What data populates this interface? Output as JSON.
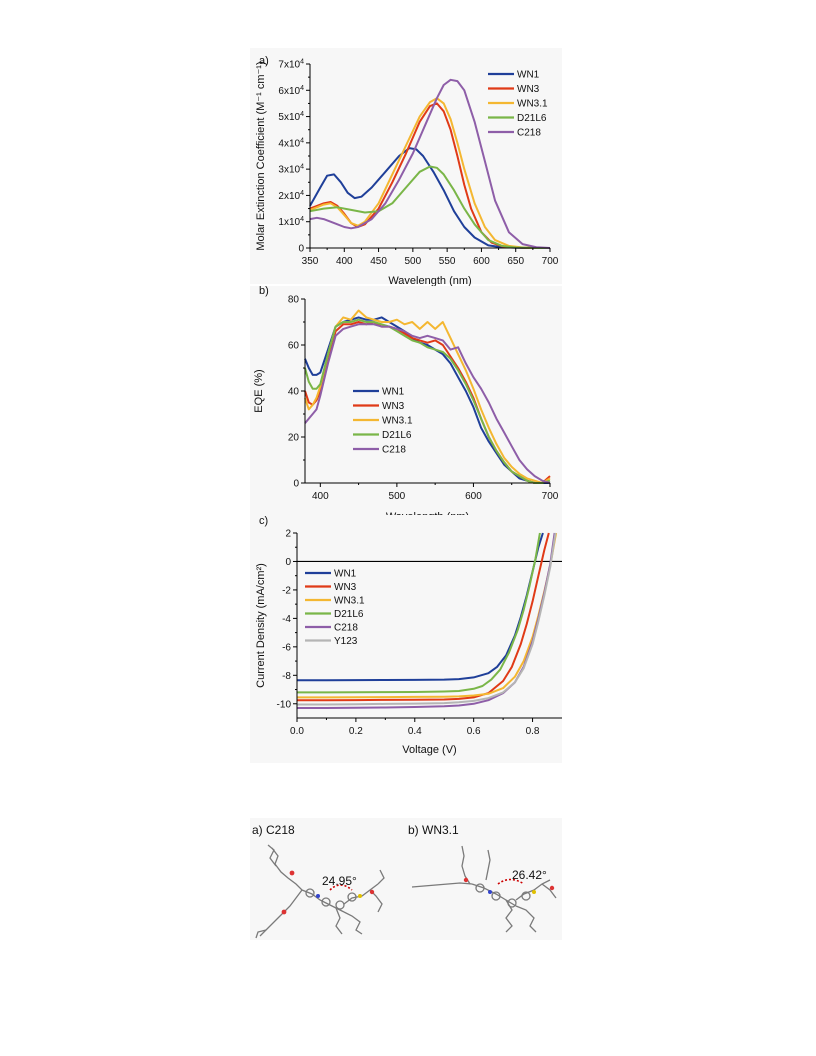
{
  "chart_data": [
    {
      "type": "line",
      "panel_label": "a)",
      "xlabel": "Wavelength (nm)",
      "ylabel": "Molar Extinction Coefficient (M⁻¹ cm⁻¹)",
      "xlim": [
        350,
        700
      ],
      "ylim": [
        0,
        70000
      ],
      "xticks": [
        350,
        400,
        450,
        500,
        550,
        600,
        650,
        700
      ],
      "yticks": [
        0,
        10000,
        20000,
        30000,
        40000,
        50000,
        60000,
        70000
      ],
      "ytick_labels": [
        "0",
        "1x10⁴",
        "2x10⁴",
        "3x10⁴",
        "4x10⁴",
        "5x10⁴",
        "6x10⁴",
        "7x10⁴"
      ],
      "legend": "top-right",
      "series": [
        {
          "name": "WN1",
          "color": "#1f3f99",
          "x": [
            350,
            365,
            375,
            385,
            395,
            405,
            415,
            425,
            440,
            460,
            480,
            495,
            505,
            515,
            530,
            545,
            560,
            575,
            590,
            610,
            630,
            650,
            670,
            700
          ],
          "y": [
            16000,
            23000,
            27500,
            28000,
            25000,
            21000,
            19000,
            19500,
            23000,
            29000,
            35000,
            38000,
            37500,
            35000,
            29000,
            22000,
            14000,
            8000,
            4000,
            1000,
            300,
            100,
            0,
            0
          ]
        },
        {
          "name": "WN3",
          "color": "#e03a17",
          "x": [
            350,
            360,
            370,
            380,
            390,
            400,
            410,
            420,
            430,
            450,
            470,
            490,
            510,
            525,
            535,
            545,
            555,
            565,
            575,
            585,
            600,
            615,
            630,
            650,
            680,
            700
          ],
          "y": [
            15000,
            16000,
            17000,
            17500,
            16000,
            13000,
            9500,
            8000,
            9000,
            15000,
            25000,
            36000,
            48000,
            54000,
            55000,
            52000,
            45000,
            35000,
            24000,
            15000,
            6000,
            2000,
            700,
            200,
            0,
            0
          ]
        },
        {
          "name": "WN3.1",
          "color": "#f4b731",
          "x": [
            350,
            360,
            370,
            380,
            390,
            400,
            410,
            420,
            430,
            450,
            470,
            490,
            510,
            525,
            535,
            545,
            555,
            565,
            575,
            590,
            605,
            620,
            640,
            660,
            690,
            700
          ],
          "y": [
            14500,
            15500,
            16500,
            17000,
            15500,
            12500,
            9500,
            8500,
            10000,
            17000,
            28000,
            39000,
            50000,
            55500,
            57000,
            55000,
            49000,
            40000,
            30000,
            17000,
            8000,
            3000,
            800,
            200,
            0,
            0
          ]
        },
        {
          "name": "D21L6",
          "color": "#7ab648",
          "x": [
            350,
            370,
            390,
            410,
            430,
            450,
            470,
            490,
            510,
            525,
            535,
            545,
            560,
            575,
            590,
            610,
            630,
            650,
            680,
            700
          ],
          "y": [
            14000,
            15000,
            15500,
            14500,
            13500,
            14000,
            17000,
            23000,
            29000,
            31000,
            30500,
            28000,
            22000,
            15000,
            9000,
            3000,
            800,
            200,
            0,
            0
          ]
        },
        {
          "name": "C218",
          "color": "#8e5ea8",
          "x": [
            350,
            360,
            370,
            380,
            390,
            400,
            410,
            420,
            440,
            460,
            480,
            500,
            520,
            535,
            545,
            555,
            565,
            575,
            590,
            605,
            620,
            640,
            660,
            680,
            700
          ],
          "y": [
            11000,
            11500,
            11000,
            10000,
            9000,
            8000,
            7500,
            8000,
            11000,
            17000,
            26000,
            36000,
            48000,
            57000,
            62000,
            64000,
            63500,
            60000,
            48000,
            33000,
            18000,
            6000,
            1500,
            300,
            0
          ]
        }
      ]
    },
    {
      "type": "line",
      "panel_label": "b)",
      "xlabel": "Wavelength (nm)",
      "ylabel": "EQE (%)",
      "xlim": [
        380,
        700
      ],
      "ylim": [
        0,
        80
      ],
      "xticks": [
        400,
        500,
        600,
        700
      ],
      "yticks": [
        0,
        20,
        40,
        60,
        80
      ],
      "legend": "center-left",
      "series": [
        {
          "name": "WN1",
          "color": "#1f3f99",
          "x": [
            380,
            385,
            390,
            395,
            400,
            410,
            420,
            430,
            440,
            450,
            460,
            470,
            480,
            490,
            500,
            510,
            520,
            530,
            540,
            550,
            560,
            570,
            580,
            590,
            600,
            610,
            620,
            630,
            640,
            650,
            660,
            670,
            680,
            690,
            700
          ],
          "y": [
            54,
            50,
            47,
            47,
            48,
            58,
            68,
            70,
            71,
            72,
            71,
            71,
            72,
            70,
            68,
            66,
            63,
            61,
            60,
            58,
            56,
            52,
            46,
            40,
            33,
            24,
            18,
            13,
            8,
            5,
            2,
            1,
            0,
            0,
            0
          ]
        },
        {
          "name": "WN3",
          "color": "#e03a17",
          "x": [
            380,
            385,
            390,
            395,
            400,
            410,
            420,
            430,
            440,
            450,
            460,
            470,
            480,
            490,
            500,
            510,
            520,
            530,
            540,
            550,
            560,
            570,
            580,
            590,
            600,
            610,
            620,
            630,
            640,
            650,
            660,
            670,
            680,
            690,
            700
          ],
          "y": [
            40,
            35,
            34,
            36,
            40,
            54,
            66,
            69,
            69,
            70,
            69,
            70,
            68,
            68,
            67,
            65,
            63,
            62,
            61,
            62,
            60,
            55,
            50,
            44,
            37,
            28,
            20,
            14,
            9,
            5,
            3,
            1,
            0,
            0,
            3
          ]
        },
        {
          "name": "WN3.1",
          "color": "#f4b731",
          "x": [
            380,
            385,
            390,
            395,
            400,
            410,
            420,
            430,
            440,
            450,
            460,
            470,
            480,
            490,
            500,
            510,
            520,
            530,
            540,
            550,
            560,
            570,
            580,
            590,
            600,
            610,
            620,
            630,
            640,
            650,
            660,
            670,
            680,
            690,
            700
          ],
          "y": [
            37,
            32,
            34,
            37,
            42,
            56,
            68,
            72,
            71,
            75,
            72,
            71,
            70,
            70,
            71,
            69,
            70,
            67,
            70,
            67,
            70,
            63,
            56,
            49,
            41,
            32,
            24,
            17,
            11,
            7,
            4,
            2,
            1,
            0,
            2
          ]
        },
        {
          "name": "D21L6",
          "color": "#7ab648",
          "x": [
            380,
            385,
            390,
            395,
            400,
            410,
            420,
            430,
            440,
            450,
            460,
            470,
            480,
            490,
            500,
            510,
            520,
            530,
            540,
            550,
            560,
            570,
            580,
            590,
            600,
            610,
            620,
            630,
            640,
            650,
            660,
            670,
            680,
            690,
            700
          ],
          "y": [
            50,
            44,
            41,
            41,
            43,
            56,
            68,
            70,
            70,
            71,
            70,
            70,
            69,
            68,
            66,
            64,
            62,
            61,
            59,
            58,
            57,
            54,
            49,
            43,
            36,
            28,
            20,
            14,
            9,
            5,
            3,
            1,
            0,
            0,
            1
          ]
        },
        {
          "name": "C218",
          "color": "#8e5ea8",
          "x": [
            380,
            385,
            390,
            395,
            400,
            410,
            420,
            430,
            440,
            450,
            460,
            470,
            480,
            490,
            500,
            510,
            520,
            530,
            540,
            550,
            560,
            570,
            580,
            590,
            600,
            610,
            620,
            630,
            640,
            650,
            660,
            670,
            680,
            690,
            700
          ],
          "y": [
            26,
            28,
            30,
            32,
            38,
            52,
            64,
            67,
            68,
            69,
            69,
            69,
            68,
            68,
            67,
            66,
            64,
            63,
            64,
            63,
            62,
            58,
            59,
            52,
            46,
            41,
            35,
            28,
            22,
            16,
            10,
            6,
            3,
            1,
            0
          ]
        }
      ]
    },
    {
      "type": "line",
      "panel_label": "c)",
      "xlabel": "Voltage (V)",
      "ylabel": "Current Density (mA/cm²)",
      "xlim": [
        0,
        0.9
      ],
      "ylim": [
        -11,
        2
      ],
      "xticks": [
        0.0,
        0.2,
        0.4,
        0.6,
        0.8
      ],
      "xtick_labels": [
        "0.0",
        "0.2",
        "0.4",
        "0.6",
        "0.8"
      ],
      "yticks": [
        -10,
        -8,
        -6,
        -4,
        -2,
        0,
        2
      ],
      "legend": "top-left",
      "series": [
        {
          "name": "WN1",
          "color": "#1f3f99",
          "x": [
            0,
            0.1,
            0.2,
            0.3,
            0.4,
            0.5,
            0.55,
            0.6,
            0.65,
            0.68,
            0.71,
            0.74,
            0.76,
            0.78,
            0.8,
            0.82,
            0.835
          ],
          "y": [
            -8.35,
            -8.35,
            -8.34,
            -8.33,
            -8.32,
            -8.3,
            -8.27,
            -8.15,
            -7.85,
            -7.4,
            -6.6,
            -5.2,
            -3.9,
            -2.4,
            -0.7,
            1.0,
            2.0
          ]
        },
        {
          "name": "WN3",
          "color": "#e03a17",
          "x": [
            0,
            0.1,
            0.2,
            0.3,
            0.4,
            0.5,
            0.55,
            0.6,
            0.65,
            0.7,
            0.73,
            0.76,
            0.78,
            0.8,
            0.82,
            0.84,
            0.855
          ],
          "y": [
            -9.75,
            -9.75,
            -9.74,
            -9.73,
            -9.72,
            -9.7,
            -9.66,
            -9.55,
            -9.25,
            -8.4,
            -7.4,
            -5.8,
            -4.4,
            -2.8,
            -1.0,
            0.8,
            2.0
          ]
        },
        {
          "name": "WN3.1",
          "color": "#f4b731",
          "x": [
            0,
            0.1,
            0.2,
            0.3,
            0.4,
            0.5,
            0.55,
            0.6,
            0.65,
            0.7,
            0.74,
            0.77,
            0.8,
            0.82,
            0.84,
            0.86,
            0.88
          ],
          "y": [
            -9.55,
            -9.55,
            -9.54,
            -9.53,
            -9.52,
            -9.5,
            -9.48,
            -9.42,
            -9.3,
            -8.9,
            -8.1,
            -7.0,
            -5.3,
            -3.8,
            -2.1,
            -0.3,
            2.0
          ]
        },
        {
          "name": "D21L6",
          "color": "#7ab648",
          "x": [
            0,
            0.1,
            0.2,
            0.3,
            0.4,
            0.5,
            0.55,
            0.6,
            0.63,
            0.66,
            0.69,
            0.72,
            0.75,
            0.77,
            0.79,
            0.81,
            0.825
          ],
          "y": [
            -9.2,
            -9.2,
            -9.19,
            -9.18,
            -9.17,
            -9.14,
            -9.1,
            -8.95,
            -8.75,
            -8.3,
            -7.6,
            -6.4,
            -4.8,
            -3.4,
            -1.7,
            0.2,
            2.0
          ]
        },
        {
          "name": "C218",
          "color": "#8e5ea8",
          "x": [
            0,
            0.1,
            0.2,
            0.3,
            0.4,
            0.5,
            0.55,
            0.6,
            0.65,
            0.7,
            0.74,
            0.77,
            0.8,
            0.82,
            0.84,
            0.86,
            0.875
          ],
          "y": [
            -10.3,
            -10.3,
            -10.28,
            -10.26,
            -10.23,
            -10.18,
            -10.12,
            -10.0,
            -9.75,
            -9.25,
            -8.5,
            -7.4,
            -5.6,
            -4.0,
            -2.2,
            -0.2,
            2.0
          ]
        },
        {
          "name": "Y123",
          "color": "#b5b5b5",
          "x": [
            0,
            0.1,
            0.2,
            0.3,
            0.4,
            0.5,
            0.55,
            0.6,
            0.65,
            0.7,
            0.74,
            0.77,
            0.8,
            0.82,
            0.84,
            0.86,
            0.878
          ],
          "y": [
            -10.05,
            -10.05,
            -10.03,
            -10.01,
            -9.99,
            -9.95,
            -9.9,
            -9.8,
            -9.6,
            -9.2,
            -8.5,
            -7.5,
            -5.8,
            -4.2,
            -2.4,
            -0.4,
            2.0
          ]
        }
      ]
    }
  ],
  "structures": {
    "a": {
      "label": "a) C218",
      "angle": "24.95°"
    },
    "b": {
      "label": "b) WN3.1",
      "angle": "26.42°"
    }
  }
}
